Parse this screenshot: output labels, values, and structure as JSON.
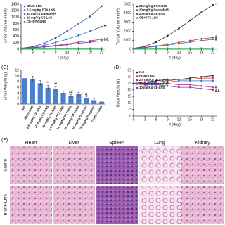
{
  "chart_data": [
    {
      "type": "line",
      "ylabel": "Tumor Volume (mm³)",
      "xlabel": "t (day)",
      "x": [
        0,
        3,
        6,
        9,
        12,
        15,
        18,
        21
      ],
      "xlim": [
        0,
        22
      ],
      "xticks": [
        0,
        3,
        6,
        9,
        12,
        15,
        18,
        21
      ],
      "ylim": [
        0,
        1400
      ],
      "yticks": [
        0,
        200,
        400,
        600,
        800,
        1000,
        1200,
        1400
      ],
      "series": [
        {
          "name": "Blank-LNS",
          "color": "#3a4a8c",
          "values": [
            30,
            80,
            180,
            350,
            560,
            800,
            1020,
            1340
          ]
        },
        {
          "name": "2.5 mg/Kg DTX-LNS",
          "color": "#2f6fb8",
          "values": [
            30,
            60,
            120,
            210,
            310,
            430,
            560,
            700
          ]
        },
        {
          "name": "10 mg/Kg Duopafei®",
          "color": "#c03a8a",
          "values": [
            30,
            50,
            80,
            120,
            160,
            220,
            260,
            310
          ]
        },
        {
          "name": "10 mg/Kg CE-LNS",
          "color": "#7a3aa0",
          "values": [
            30,
            45,
            70,
            100,
            140,
            180,
            220,
            260
          ]
        },
        {
          "name": "CE+DTX-LNS",
          "color": "#2aa84a",
          "values": [
            30,
            30,
            30,
            32,
            30,
            30,
            30,
            30
          ]
        }
      ],
      "annotations": [
        {
          "text": "**",
          "x": 21,
          "y": 700
        },
        {
          "text": "&&",
          "x": 21,
          "y": 300
        }
      ]
    },
    {
      "type": "line",
      "ylabel": "Tumor Volume (mm³)",
      "xlabel": "t (day)",
      "x": [
        0,
        3,
        6,
        9,
        12,
        15,
        18,
        21
      ],
      "xlim": [
        0,
        22
      ],
      "xticks": [
        0,
        3,
        6,
        9,
        12,
        15,
        18,
        21
      ],
      "ylim": [
        0,
        5000
      ],
      "yticks": [
        0,
        1000,
        2000,
        3000,
        4000,
        5000
      ],
      "series": [
        {
          "name": "20 mg/Kg DTX-LNS",
          "color": "#222222",
          "values": [
            100,
            300,
            800,
            1500,
            2300,
            3200,
            4100,
            4900
          ]
        },
        {
          "name": "20 mg/Kg Duopafei®",
          "color": "#c0392b",
          "values": [
            100,
            200,
            350,
            550,
            750,
            950,
            1150,
            1300
          ]
        },
        {
          "name": "20 mg/Kg CE-LNS",
          "color": "#2f6fb8",
          "values": [
            100,
            180,
            300,
            450,
            620,
            800,
            950,
            1100
          ]
        },
        {
          "name": "CE+DTX-LNS",
          "color": "#2aa84a",
          "values": [
            100,
            100,
            110,
            110,
            100,
            100,
            110,
            100
          ]
        }
      ],
      "annotations": [
        {
          "text": "**",
          "x": 21,
          "y": 4900
        },
        {
          "text": "&",
          "x": 21,
          "y": 1300
        },
        {
          "text": "#",
          "x": 21,
          "y": 1050
        }
      ]
    },
    {
      "type": "bar",
      "panel_label": "(C)",
      "ylabel": "Tumor Weight (g)",
      "color": "#4a7fd0",
      "categories": [
        "N.S",
        "Blank-LNS",
        "2.5 mg/Kg CE-LNS",
        "10 mg/Kg CE-LNS",
        "20 mg/Kg CE-LNS",
        "2.5 mg/Kg DTX-LNS",
        "10 mg/Kg DTX-LNS",
        "20 mg/Kg DTX-LNS",
        "10 mg/Kg Duopafei",
        "20 mg/Kg Duopafei",
        "CE+DTX-LNS"
      ],
      "values": [
        9.2,
        8.8,
        7.4,
        5.8,
        5.4,
        4.0,
        2.8,
        3.6,
        2.2,
        1.4,
        0.8
      ],
      "errors": [
        1.2,
        1.1,
        1.0,
        0.9,
        0.8,
        0.7,
        0.6,
        0.6,
        0.5,
        0.4,
        0.3
      ],
      "ylim": [
        0,
        12
      ],
      "yticks": [
        0,
        2,
        4,
        6,
        8,
        10,
        12
      ],
      "annotations": [
        {
          "text": "**",
          "index": 3
        },
        {
          "text": "**",
          "index": 4
        },
        {
          "text": "##",
          "index": 6
        },
        {
          "text": "&",
          "index": 8
        }
      ]
    },
    {
      "type": "line",
      "panel_label": "(D)",
      "ylabel": "Body Weight (g)",
      "xlabel": "t (day)",
      "x": [
        0,
        3,
        6,
        9,
        12,
        15,
        18,
        21
      ],
      "xlim": [
        0,
        22
      ],
      "xticks": [
        0,
        3,
        6,
        9,
        12,
        15,
        18,
        21
      ],
      "ylim": [
        0,
        35
      ],
      "yticks": [
        0,
        5,
        10,
        15,
        20,
        25,
        30,
        35
      ],
      "series": [
        {
          "name": "N.S",
          "color": "#222222",
          "values": [
            25,
            26,
            27,
            28,
            28,
            29,
            30,
            31
          ]
        },
        {
          "name": "Blank-LNS",
          "color": "#c0392b",
          "values": [
            25,
            26,
            26,
            27,
            28,
            28,
            29,
            29
          ]
        },
        {
          "name": "2.5 mg/Kg DTX-LNS",
          "color": "#2f6fb8",
          "values": [
            25,
            25,
            26,
            26,
            27,
            27,
            27,
            27
          ]
        },
        {
          "name": "10 mg/Kg Duopafei®",
          "color": "#c03a8a",
          "values": [
            25,
            25,
            25,
            25,
            24,
            24,
            23,
            22
          ]
        },
        {
          "name": "10 mg/Kg CE-LNS",
          "color": "#7a3aa0",
          "values": [
            25,
            24,
            24,
            23,
            22,
            22,
            21,
            20
          ]
        }
      ],
      "annotations": [
        {
          "text": "#",
          "x": 21,
          "y": 22
        },
        {
          "text": "&&",
          "x": 21,
          "y": 19
        }
      ]
    }
  ],
  "histology": {
    "panel_label": "(E)",
    "columns": [
      "Heart",
      "Liver",
      "Spleen",
      "Lung",
      "Kidney"
    ],
    "rows": [
      "Saline",
      "Blank-LNS"
    ]
  }
}
